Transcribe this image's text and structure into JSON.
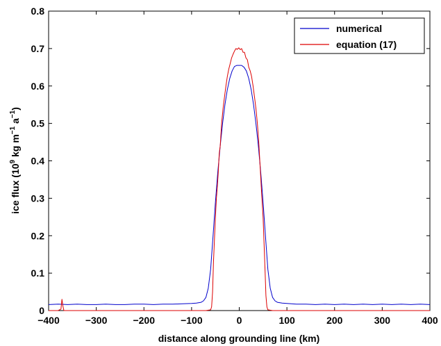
{
  "chart_data": {
    "type": "line",
    "title": "",
    "xlabel": "distance along grounding line (km)",
    "ylabel": {
      "prefix": "ice flux (10",
      "sup1": "9",
      "middle1": " kg m",
      "sup2": "−1",
      "middle2": " a",
      "sup3": "−1",
      "suffix": ")"
    },
    "xlim": [
      -400,
      400
    ],
    "ylim": [
      0,
      0.8
    ],
    "xticks": [
      -400,
      -300,
      -200,
      -100,
      0,
      100,
      200,
      300,
      400
    ],
    "xtick_labels": [
      "−400",
      "−300",
      "−200",
      "−100",
      "0",
      "100",
      "200",
      "300",
      "400"
    ],
    "yticks": [
      0,
      0.1,
      0.2,
      0.3,
      0.4,
      0.5,
      0.6,
      0.7,
      0.8
    ],
    "ytick_labels": [
      "0",
      "0.1",
      "0.2",
      "0.3",
      "0.4",
      "0.5",
      "0.6",
      "0.7",
      "0.8"
    ],
    "grid": false,
    "legend_position": "top-right",
    "series": [
      {
        "name": "numerical",
        "color": "#0000cc",
        "x": [
          -400,
          -380,
          -360,
          -340,
          -320,
          -300,
          -280,
          -260,
          -240,
          -220,
          -200,
          -180,
          -160,
          -140,
          -120,
          -100,
          -90,
          -80,
          -75,
          -70,
          -65,
          -60,
          -55,
          -50,
          -45,
          -40,
          -35,
          -30,
          -25,
          -20,
          -15,
          -10,
          -5,
          0,
          5,
          10,
          15,
          20,
          25,
          30,
          35,
          40,
          45,
          50,
          55,
          60,
          65,
          70,
          75,
          80,
          90,
          100,
          120,
          140,
          160,
          180,
          200,
          220,
          240,
          260,
          280,
          300,
          320,
          340,
          360,
          380,
          400
        ],
        "y": [
          0.016,
          0.017,
          0.016,
          0.017,
          0.016,
          0.016,
          0.017,
          0.016,
          0.016,
          0.017,
          0.017,
          0.016,
          0.017,
          0.017,
          0.018,
          0.019,
          0.02,
          0.022,
          0.026,
          0.035,
          0.06,
          0.11,
          0.2,
          0.29,
          0.37,
          0.44,
          0.5,
          0.55,
          0.59,
          0.62,
          0.64,
          0.652,
          0.655,
          0.655,
          0.655,
          0.65,
          0.64,
          0.62,
          0.59,
          0.55,
          0.5,
          0.44,
          0.37,
          0.29,
          0.2,
          0.11,
          0.06,
          0.035,
          0.026,
          0.022,
          0.02,
          0.019,
          0.017,
          0.017,
          0.016,
          0.017,
          0.016,
          0.017,
          0.016,
          0.017,
          0.016,
          0.017,
          0.016,
          0.017,
          0.016,
          0.017,
          0.016
        ]
      },
      {
        "name": "equation (17)",
        "color": "#dd0000",
        "x": [
          -400,
          -380,
          -374,
          -372,
          -370,
          -368,
          -360,
          -300,
          -200,
          -100,
          -70,
          -60,
          -58,
          -56,
          -54,
          -52,
          -50,
          -48,
          -46,
          -44,
          -42,
          -40,
          -37,
          -34,
          -31,
          -28,
          -25,
          -22,
          -19,
          -16,
          -13,
          -10,
          -7,
          -4,
          -1,
          2,
          5,
          8,
          11,
          14,
          17,
          20,
          23,
          26,
          29,
          32,
          35,
          38,
          41,
          44,
          47,
          50,
          52,
          54,
          56,
          58,
          60,
          70,
          100,
          200,
          300,
          400
        ],
        "y": [
          0.0,
          0.0,
          0.004,
          0.03,
          0.012,
          0.0,
          0.0,
          0.0,
          0.0,
          0.0,
          0.0,
          0.002,
          0.01,
          0.05,
          0.13,
          0.19,
          0.25,
          0.3,
          0.33,
          0.37,
          0.42,
          0.44,
          0.5,
          0.54,
          0.57,
          0.6,
          0.625,
          0.645,
          0.66,
          0.675,
          0.685,
          0.693,
          0.7,
          0.698,
          0.702,
          0.697,
          0.7,
          0.69,
          0.69,
          0.675,
          0.67,
          0.65,
          0.64,
          0.625,
          0.6,
          0.57,
          0.54,
          0.5,
          0.45,
          0.38,
          0.31,
          0.25,
          0.18,
          0.11,
          0.04,
          0.01,
          0.002,
          0.0,
          0.0,
          0.0,
          0.0,
          0.0
        ]
      }
    ]
  }
}
